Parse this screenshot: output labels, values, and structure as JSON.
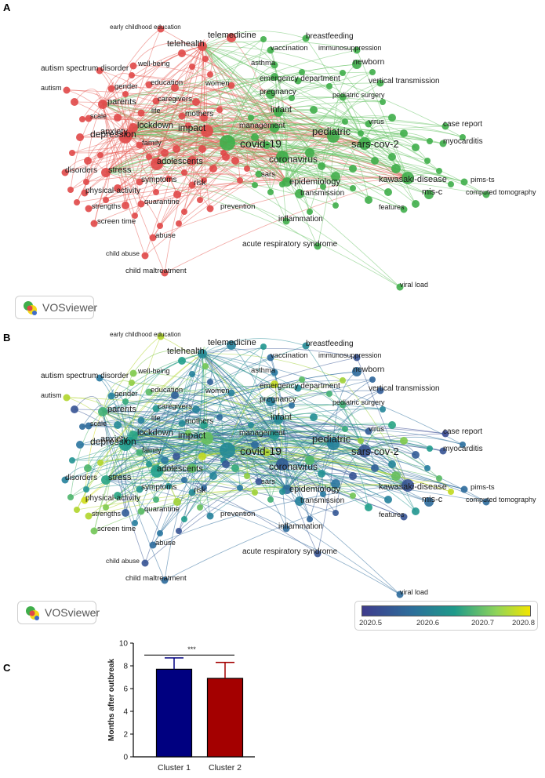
{
  "panels": {
    "a": "A",
    "b": "B",
    "c": "C"
  },
  "branding": {
    "vosviewer": "VOSviewer"
  },
  "colors": {
    "cluster1": "#e8605a",
    "cluster1_node": "#e04848",
    "cluster2": "#6cc46a",
    "cluster2_node": "#3fae4a",
    "overlay_low": "#3f3b8c",
    "overlay_mid": "#1f9a8a",
    "overlay_high": "#f2e500",
    "bar_cluster1": "#000080",
    "bar_cluster2": "#a40000"
  },
  "overlay_scale": {
    "ticks": [
      "2020.5",
      "2020.6",
      "2020.7",
      "2020.8"
    ]
  },
  "network_keywords": [
    {
      "id": "early childhood education",
      "cluster": 1,
      "size": 1,
      "year": 2020.78
    },
    {
      "id": "telemedicine",
      "cluster": 1,
      "size": 2,
      "year": 2020.6
    },
    {
      "id": "telehealth",
      "cluster": 1,
      "size": 2,
      "year": 2020.62
    },
    {
      "id": "autism spectrum disorder",
      "cluster": 1,
      "size": 1,
      "year": 2020.58
    },
    {
      "id": "well-being",
      "cluster": 1,
      "size": 1,
      "year": 2020.75
    },
    {
      "id": "autism",
      "cluster": 1,
      "size": 1,
      "year": 2020.78
    },
    {
      "id": "gender",
      "cluster": 1,
      "size": 1,
      "year": 2020.6
    },
    {
      "id": "education",
      "cluster": 1,
      "size": 1,
      "year": 2020.72
    },
    {
      "id": "women",
      "cluster": 1,
      "size": 1,
      "year": 2020.6
    },
    {
      "id": "caregivers",
      "cluster": 1,
      "size": 1,
      "year": 2020.65
    },
    {
      "id": "parents",
      "cluster": 1,
      "size": 2,
      "year": 2020.7
    },
    {
      "id": "life",
      "cluster": 1,
      "size": 1,
      "year": 2020.6
    },
    {
      "id": "mothers",
      "cluster": 1,
      "size": 1,
      "year": 2020.62
    },
    {
      "id": "scale",
      "cluster": 1,
      "size": 1,
      "year": 2020.55
    },
    {
      "id": "lockdown",
      "cluster": 1,
      "size": 2,
      "year": 2020.68
    },
    {
      "id": "impact",
      "cluster": 1,
      "size": 3,
      "year": 2020.73
    },
    {
      "id": "anxiety",
      "cluster": 1,
      "size": 2,
      "year": 2020.66
    },
    {
      "id": "family",
      "cluster": 1,
      "size": 1,
      "year": 2020.7
    },
    {
      "id": "depression",
      "cluster": 1,
      "size": 3,
      "year": 2020.66
    },
    {
      "id": "adolescents",
      "cluster": 1,
      "size": 3,
      "year": 2020.67
    },
    {
      "id": "disorders",
      "cluster": 1,
      "size": 1,
      "year": 2020.6
    },
    {
      "id": "stress",
      "cluster": 1,
      "size": 2,
      "year": 2020.68
    },
    {
      "id": "symptoms",
      "cluster": 1,
      "size": 1,
      "year": 2020.65
    },
    {
      "id": "risk",
      "cluster": 1,
      "size": 1,
      "year": 2020.62
    },
    {
      "id": "physical-activity",
      "cluster": 1,
      "size": 1,
      "year": 2020.8
    },
    {
      "id": "quarantine",
      "cluster": 1,
      "size": 1,
      "year": 2020.72
    },
    {
      "id": "strengths",
      "cluster": 1,
      "size": 1,
      "year": 2020.78
    },
    {
      "id": "screen time",
      "cluster": 1,
      "size": 1,
      "year": 2020.74
    },
    {
      "id": "prevention",
      "cluster": 1,
      "size": 1,
      "year": 2020.6
    },
    {
      "id": "abuse",
      "cluster": 1,
      "size": 1,
      "year": 2020.55
    },
    {
      "id": "child abuse",
      "cluster": 1,
      "size": 1,
      "year": 2020.5
    },
    {
      "id": "child maltreatment",
      "cluster": 1,
      "size": 1,
      "year": 2020.55
    },
    {
      "id": "breastfeeding",
      "cluster": 2,
      "size": 1,
      "year": 2020.62
    },
    {
      "id": "vaccination",
      "cluster": 2,
      "size": 1,
      "year": 2020.55
    },
    {
      "id": "immunosuppression",
      "cluster": 2,
      "size": 1,
      "year": 2020.5
    },
    {
      "id": "asthma",
      "cluster": 2,
      "size": 1,
      "year": 2020.58
    },
    {
      "id": "newborn",
      "cluster": 2,
      "size": 2,
      "year": 2020.55
    },
    {
      "id": "emergency department",
      "cluster": 2,
      "size": 1,
      "year": 2020.62
    },
    {
      "id": "vertical transmission",
      "cluster": 2,
      "size": 1,
      "year": 2020.52
    },
    {
      "id": "pregnancy",
      "cluster": 2,
      "size": 2,
      "year": 2020.6
    },
    {
      "id": "pediatric surgery",
      "cluster": 2,
      "size": 1,
      "year": 2020.7
    },
    {
      "id": "infant",
      "cluster": 2,
      "size": 2,
      "year": 2020.62
    },
    {
      "id": "management",
      "cluster": 2,
      "size": 2,
      "year": 2020.65
    },
    {
      "id": "virus",
      "cluster": 2,
      "size": 1,
      "year": 2020.52
    },
    {
      "id": "case report",
      "cluster": 2,
      "size": 1,
      "year": 2020.48
    },
    {
      "id": "covid-19",
      "cluster": 2,
      "size": 4,
      "year": 2020.62
    },
    {
      "id": "pediatric",
      "cluster": 2,
      "size": 3,
      "year": 2020.6
    },
    {
      "id": "sars-cov-2",
      "cluster": 2,
      "size": 3,
      "year": 2020.5
    },
    {
      "id": "myocarditis",
      "cluster": 2,
      "size": 1,
      "year": 2020.5
    },
    {
      "id": "coronavirus",
      "cluster": 2,
      "size": 3,
      "year": 2020.52
    },
    {
      "id": "sars",
      "cluster": 2,
      "size": 1,
      "year": 2020.5
    },
    {
      "id": "epidemiology",
      "cluster": 2,
      "size": 2,
      "year": 2020.55
    },
    {
      "id": "kawasaki-disease",
      "cluster": 2,
      "size": 3,
      "year": 2020.5
    },
    {
      "id": "pims-ts",
      "cluster": 2,
      "size": 1,
      "year": 2020.55
    },
    {
      "id": "transmission",
      "cluster": 2,
      "size": 2,
      "year": 2020.6
    },
    {
      "id": "mis-c",
      "cluster": 2,
      "size": 2,
      "year": 2020.55
    },
    {
      "id": "computed tomography",
      "cluster": 2,
      "size": 1,
      "year": 2020.55
    },
    {
      "id": "features",
      "cluster": 2,
      "size": 1,
      "year": 2020.5
    },
    {
      "id": "inflammation",
      "cluster": 2,
      "size": 1,
      "year": 2020.55
    },
    {
      "id": "acute respiratory syndrome",
      "cluster": 2,
      "size": 1,
      "year": 2020.5
    },
    {
      "id": "viral load",
      "cluster": 2,
      "size": 1,
      "year": 2020.55
    }
  ],
  "bar_chart": {
    "chart_data": {
      "type": "bar",
      "categories": [
        "Cluster 1",
        "Cluster 2"
      ],
      "values": [
        7.7,
        6.9
      ],
      "errors": [
        1.0,
        1.4
      ],
      "ylabel": "Months after outbreak",
      "ylim": [
        0,
        10
      ],
      "yticks": [
        "0",
        "2",
        "4",
        "6",
        "8",
        "10"
      ],
      "significance": "***",
      "grid": false
    }
  }
}
